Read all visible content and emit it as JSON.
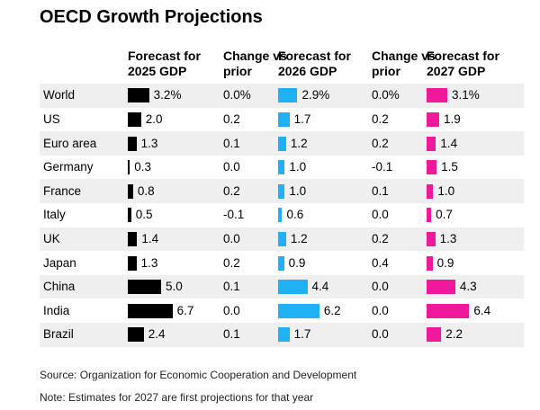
{
  "header": {
    "title": "OECD Growth Projections"
  },
  "table": {
    "headers": [
      "Forecast for 2025 GDP",
      "Change vs prior",
      "Forecast for 2026 GDP",
      "Change vs prior",
      "Forecast for 2027 GDP"
    ],
    "regions": [
      "World",
      "US",
      "Euro area",
      "Germany",
      "France",
      "Italy",
      "UK",
      "Japan",
      "China",
      "India",
      "Brazil"
    ],
    "gdp_2025": {
      "color": "#000000",
      "values": [
        3.2,
        2.0,
        1.3,
        0.3,
        0.8,
        0.5,
        1.4,
        1.3,
        5.0,
        6.7,
        2.4
      ],
      "value_labels": [
        "3.2%",
        "2.0",
        "1.3",
        "0.3",
        "0.8",
        "0.5",
        "1.4",
        "1.3",
        "5.0",
        "6.7",
        "2.4"
      ]
    },
    "change_2026": [
      "0.0%",
      "0.2",
      "0.1",
      "0.0",
      "0.2",
      "-0.1",
      "0.0",
      "0.2",
      "0.1",
      "0.0",
      "0.1"
    ],
    "gdp_2026": {
      "color": "#1fb0f5",
      "values": [
        2.9,
        1.7,
        1.2,
        1.0,
        1.0,
        0.6,
        1.2,
        0.9,
        4.4,
        6.2,
        1.7
      ],
      "value_labels": [
        "2.9%",
        "1.7",
        "1.2",
        "1.0",
        "1.0",
        "0.6",
        "1.2",
        "0.9",
        "4.4",
        "6.2",
        "1.7"
      ]
    },
    "change_2027": [
      "0.0%",
      "0.2",
      "0.2",
      "-0.1",
      "0.1",
      "0.0",
      "0.2",
      "0.4",
      "0.0",
      "0.0",
      "0.0"
    ],
    "gdp_2027": {
      "color": "#f0199b",
      "values": [
        3.1,
        1.9,
        1.4,
        1.5,
        1.0,
        0.7,
        1.3,
        0.9,
        4.3,
        6.4,
        2.2
      ],
      "value_labels": [
        "3.1%",
        "1.9",
        "1.4",
        "1.5",
        "1.0",
        "0.7",
        "1.3",
        "0.9",
        "4.3",
        "6.4",
        "2.2"
      ]
    }
  },
  "footer": {
    "source": "Source: Organization for Economic Cooperation and Development",
    "note": "Note: Estimates for 2027 are first projections for that year"
  }
}
